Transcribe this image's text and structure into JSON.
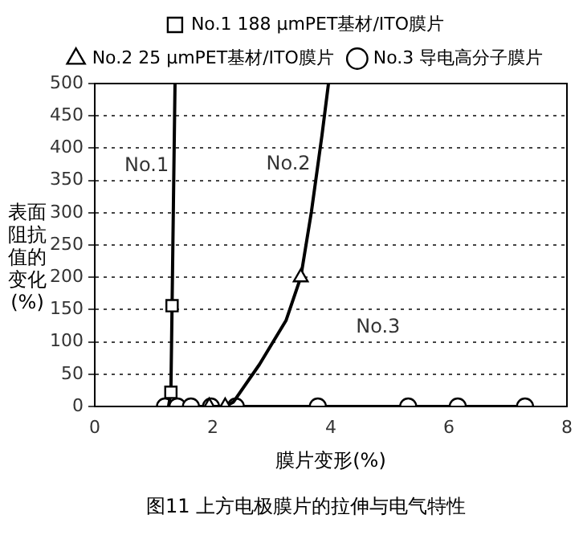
{
  "chart_data": {
    "type": "line",
    "title": "图11 上方电极膜片的拉伸与电气特性",
    "xlabel": "膜片变形(%)",
    "ylabel": "表面阻抗值的变化(%)",
    "xlim": [
      0,
      8
    ],
    "xticks": [
      0,
      2,
      4,
      6,
      8
    ],
    "ylim": [
      0,
      500
    ],
    "yticks": [
      0,
      50,
      100,
      150,
      200,
      250,
      300,
      350,
      400,
      450,
      500
    ],
    "grid": "y",
    "legend": "top",
    "series": [
      {
        "color": "#000000",
        "marker": "none",
        "x": [
          1.25,
          1.29,
          1.31,
          1.36
        ],
        "values": [
          0,
          22,
          156,
          500
        ]
      },
      {
        "type": "scatter",
        "name": "No.1 188 μmPET基材/ITO膜片",
        "color": "#000000",
        "marker": "square",
        "x": [
          1.29,
          1.31
        ],
        "values": [
          22,
          156
        ]
      },
      {
        "color": "#000000",
        "marker": "none",
        "x": [
          1.94,
          2.21,
          2.35,
          2.79,
          3.24,
          3.49,
          3.67,
          3.85,
          3.96
        ],
        "values": [
          0,
          0,
          7,
          65,
          133,
          200,
          301,
          420,
          500
        ]
      },
      {
        "type": "scatter",
        "name": "No.2 25 μmPET基材/ITO膜片",
        "color": "#000000",
        "marker": "triangle",
        "x": [
          1.94,
          2.21,
          3.49
        ],
        "values": [
          0,
          0,
          200
        ]
      },
      {
        "name": "No.3 导电高分子膜片",
        "color": "#000000",
        "marker": "circle",
        "x": [
          1.19,
          1.4,
          1.63,
          1.97,
          2.39,
          3.78,
          5.31,
          6.15,
          7.29
        ],
        "values": [
          0,
          0,
          0,
          0,
          0,
          0,
          0,
          0,
          0
        ]
      }
    ],
    "annotations": [
      "No.1",
      "No.2",
      "No.3"
    ]
  }
}
